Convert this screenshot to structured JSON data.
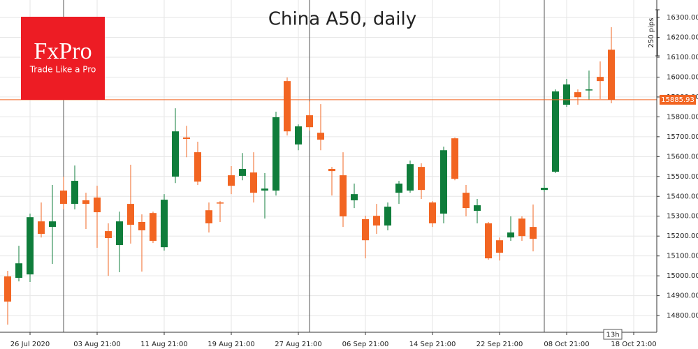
{
  "chart_data": {
    "type": "candlestick",
    "title": "China A50, daily",
    "candles": {
      "open": [
        14997,
        14990,
        15007,
        15274,
        15246,
        15429,
        15362,
        15380,
        15394,
        15225,
        15155,
        15362,
        15271,
        15316,
        15144,
        15499,
        15696,
        15622,
        15330,
        15369,
        15506,
        15503,
        15520,
        15429,
        15429,
        15980,
        15661,
        15808,
        15720,
        15538,
        15506,
        15380,
        15285,
        15302,
        15253,
        15418,
        15429,
        15548,
        15369,
        15313,
        15692,
        15418,
        15327,
        15264,
        15179,
        15193,
        15288,
        15246,
        15432,
        15524,
        15861,
        15924,
        15935,
        16001,
        16138
      ],
      "high": [
        15025,
        15151,
        15313,
        15369,
        15457,
        15499,
        15555,
        15418,
        15453,
        15264,
        15323,
        15559,
        15309,
        15323,
        15411,
        15843,
        15755,
        15675,
        15369,
        15376,
        15552,
        15618,
        15622,
        15517,
        15826,
        15998,
        15762,
        15878,
        15864,
        15548,
        15622,
        15464,
        15302,
        15362,
        15369,
        15478,
        15580,
        15566,
        15376,
        15650,
        15696,
        15457,
        15387,
        15271,
        15193,
        15299,
        15299,
        15359,
        15457,
        15938,
        15991,
        15938,
        16033,
        16079,
        16251
      ],
      "low": [
        14754,
        14972,
        14969,
        15193,
        15060,
        15334,
        15334,
        15236,
        15141,
        15000,
        15018,
        15162,
        15021,
        15165,
        15127,
        15467,
        15597,
        15457,
        15218,
        15271,
        15411,
        15481,
        15369,
        15288,
        15404,
        15706,
        15632,
        15731,
        15632,
        15404,
        15246,
        15341,
        15088,
        15211,
        15229,
        15362,
        15418,
        15387,
        15246,
        15264,
        15481,
        15299,
        15264,
        15081,
        15077,
        15176,
        15176,
        15123,
        15422,
        15517,
        15850,
        15861,
        15885,
        15889,
        15868
      ],
      "close": [
        14870,
        15063,
        15295,
        15211,
        15274,
        15362,
        15478,
        15362,
        15320,
        15190,
        15274,
        15257,
        15229,
        15176,
        15383,
        15727,
        15689,
        15474,
        15264,
        15366,
        15453,
        15538,
        15418,
        15439,
        15798,
        15727,
        15752,
        15748,
        15685,
        15527,
        15299,
        15411,
        15179,
        15253,
        15348,
        15464,
        15562,
        15432,
        15264,
        15632,
        15488,
        15341,
        15355,
        15088,
        15116,
        15218,
        15200,
        15186,
        15443,
        15928,
        15963,
        15899,
        15938,
        15980,
        15885.93
      ]
    },
    "up_color": "#0f7d3b",
    "down_color": "#f26522",
    "ylim": [
      14716,
      16388
    ],
    "yticks": [
      {
        "value": 14800,
        "label": "14800.00"
      },
      {
        "value": 14900,
        "label": "14900.00"
      },
      {
        "value": 15000,
        "label": "15000.00"
      },
      {
        "value": 15100,
        "label": "15100.00"
      },
      {
        "value": 15200,
        "label": "15200.00"
      },
      {
        "value": 15300,
        "label": "15300.00"
      },
      {
        "value": 15400,
        "label": "15400.00"
      },
      {
        "value": 15500,
        "label": "15500.00"
      },
      {
        "value": 15600,
        "label": "15600.00"
      },
      {
        "value": 15700,
        "label": "15700.00"
      },
      {
        "value": 15800,
        "label": "15800.00"
      },
      {
        "value": 15900,
        "label": "15900.00"
      },
      {
        "value": 16000,
        "label": "16000.00"
      },
      {
        "value": 16100,
        "label": "16100.00"
      },
      {
        "value": 16200,
        "label": "16200.00"
      },
      {
        "value": 16300,
        "label": "16300.00"
      }
    ],
    "xlim": [
      -0.6875,
      58.0625
    ],
    "xticks": [
      {
        "value": 2,
        "label": "26 Jul 2020"
      },
      {
        "value": 8,
        "label": "03 Aug 21:00"
      },
      {
        "value": 14,
        "label": "11 Aug 21:00"
      },
      {
        "value": 20,
        "label": "19 Aug 21:00"
      },
      {
        "value": 26,
        "label": "27 Aug 21:00"
      },
      {
        "value": 32,
        "label": "06 Sep 21:00"
      },
      {
        "value": 38,
        "label": "14 Sep 21:00"
      },
      {
        "value": 44,
        "label": "22 Sep 21:00"
      },
      {
        "value": 50,
        "label": "08 Oct 21:00"
      },
      {
        "value": 56,
        "label": "18 Oct 21:00"
      }
    ],
    "grid": true,
    "last_price": {
      "value": 15885.93,
      "label": "15885.93"
    },
    "ruler_label": "250 pips",
    "time_label": "13h"
  },
  "logo": {
    "name": "FxPro",
    "tagline": "Trade Like a Pro"
  }
}
